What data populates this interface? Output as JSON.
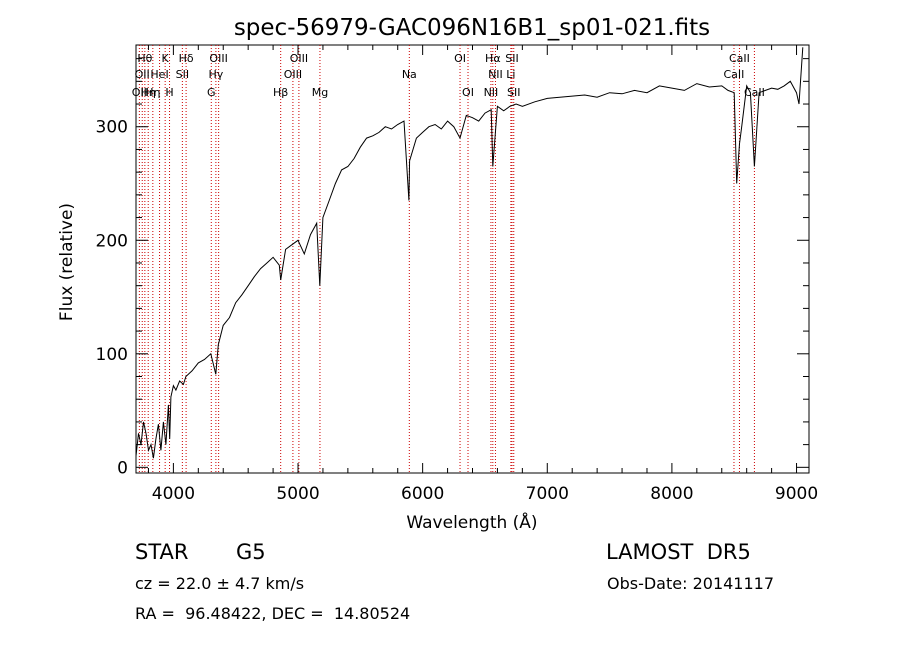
{
  "chart_data": {
    "type": "line",
    "title": "spec-56979-GAC096N16B1_sp01-021.fits",
    "xlabel": "Wavelength (Å)",
    "ylabel": "Flux (relative)",
    "xlim": [
      3700,
      9100
    ],
    "ylim": [
      -5,
      372
    ],
    "x_ticks": [
      4000,
      5000,
      6000,
      7000,
      8000,
      9000
    ],
    "y_ticks": [
      0,
      100,
      200,
      300
    ],
    "grid": false,
    "line_color": "#000000",
    "marker_color": "#cc0000",
    "series": [
      {
        "x": [
          3700,
          3720,
          3740,
          3760,
          3780,
          3800,
          3820,
          3840,
          3860,
          3880,
          3900,
          3920,
          3940,
          3960,
          3970,
          3980,
          4000,
          4020,
          4050,
          4080,
          4100,
          4150,
          4200,
          4250,
          4300,
          4340,
          4360,
          4400,
          4450,
          4500,
          4550,
          4600,
          4650,
          4700,
          4750,
          4800,
          4850,
          4861,
          4900,
          4950,
          5000,
          5050,
          5100,
          5150,
          5175,
          5200,
          5250,
          5300,
          5350,
          5400,
          5450,
          5500,
          5550,
          5600,
          5650,
          5700,
          5750,
          5800,
          5850,
          5890,
          5895,
          5950,
          6000,
          6050,
          6100,
          6150,
          6200,
          6250,
          6300,
          6350,
          6400,
          6450,
          6500,
          6550,
          6563,
          6600,
          6650,
          6700,
          6750,
          6800,
          6900,
          7000,
          7100,
          7200,
          7300,
          7400,
          7500,
          7600,
          7700,
          7800,
          7900,
          8000,
          8100,
          8200,
          8300,
          8400,
          8450,
          8500,
          8520,
          8542,
          8560,
          8600,
          8630,
          8662,
          8700,
          8750,
          8800,
          8850,
          8900,
          8950,
          9000,
          9020,
          9050
        ],
        "y": [
          10,
          30,
          20,
          40,
          30,
          15,
          20,
          8,
          25,
          38,
          15,
          40,
          20,
          55,
          25,
          62,
          72,
          68,
          76,
          73,
          80,
          85,
          92,
          95,
          100,
          82,
          108,
          125,
          132,
          145,
          152,
          160,
          168,
          175,
          180,
          185,
          178,
          165,
          192,
          196,
          200,
          188,
          205,
          215,
          160,
          220,
          235,
          250,
          262,
          265,
          272,
          282,
          290,
          292,
          295,
          300,
          298,
          302,
          305,
          235,
          270,
          290,
          295,
          300,
          302,
          298,
          305,
          300,
          290,
          310,
          308,
          305,
          312,
          315,
          265,
          318,
          314,
          318,
          320,
          318,
          322,
          325,
          326,
          327,
          328,
          326,
          330,
          329,
          332,
          330,
          336,
          334,
          332,
          338,
          335,
          336,
          332,
          330,
          250,
          285,
          300,
          336,
          330,
          265,
          330,
          332,
          334,
          333,
          336,
          340,
          330,
          320,
          370
        ]
      }
    ],
    "lines": [
      {
        "wl": 3727,
        "label": "OII",
        "row": 3
      },
      {
        "wl": 3750,
        "label": "OII",
        "row": 2
      },
      {
        "wl": 3771,
        "label": "Hθ",
        "row": 1
      },
      {
        "wl": 3798,
        "label": "Hη",
        "row": 3
      },
      {
        "wl": 3835,
        "label": "Hη",
        "row": 3
      },
      {
        "wl": 3889,
        "label": "HeI",
        "row": 2
      },
      {
        "wl": 3934,
        "label": "K",
        "row": 1
      },
      {
        "wl": 3969,
        "label": "H",
        "row": 3
      },
      {
        "wl": 4072,
        "label": "SII",
        "row": 2
      },
      {
        "wl": 4102,
        "label": "Hδ",
        "row": 1
      },
      {
        "wl": 4304,
        "label": "G",
        "row": 3
      },
      {
        "wl": 4341,
        "label": "Hγ",
        "row": 2
      },
      {
        "wl": 4363,
        "label": "OIII",
        "row": 1
      },
      {
        "wl": 4861,
        "label": "Hβ",
        "row": 3
      },
      {
        "wl": 4959,
        "label": "OIII",
        "row": 2
      },
      {
        "wl": 5007,
        "label": "OIII",
        "row": 1
      },
      {
        "wl": 5176,
        "label": "Mg",
        "row": 3
      },
      {
        "wl": 5893,
        "label": "Na",
        "row": 2
      },
      {
        "wl": 6300,
        "label": "OI",
        "row": 1
      },
      {
        "wl": 6364,
        "label": "OI",
        "row": 3
      },
      {
        "wl": 6548,
        "label": "NII",
        "row": 3
      },
      {
        "wl": 6563,
        "label": "Hα",
        "row": 1
      },
      {
        "wl": 6584,
        "label": "NII",
        "row": 2
      },
      {
        "wl": 6708,
        "label": "Li",
        "row": 2
      },
      {
        "wl": 6717,
        "label": "SII",
        "row": 1
      },
      {
        "wl": 6731,
        "label": "SII",
        "row": 3
      },
      {
        "wl": 8498,
        "label": "CaII",
        "row": 2
      },
      {
        "wl": 8542,
        "label": "CaII",
        "row": 1
      },
      {
        "wl": 8662,
        "label": "CaII",
        "row": 3
      }
    ]
  },
  "info": {
    "object_class": "STAR",
    "subclass": "G5",
    "survey": "LAMOST  DR5",
    "redshift": "cz = 22.0 ± 4.7 km/s",
    "obs_date": "Obs-Date: 20141117",
    "coords": "RA =  96.48422, DEC =  14.80524"
  }
}
